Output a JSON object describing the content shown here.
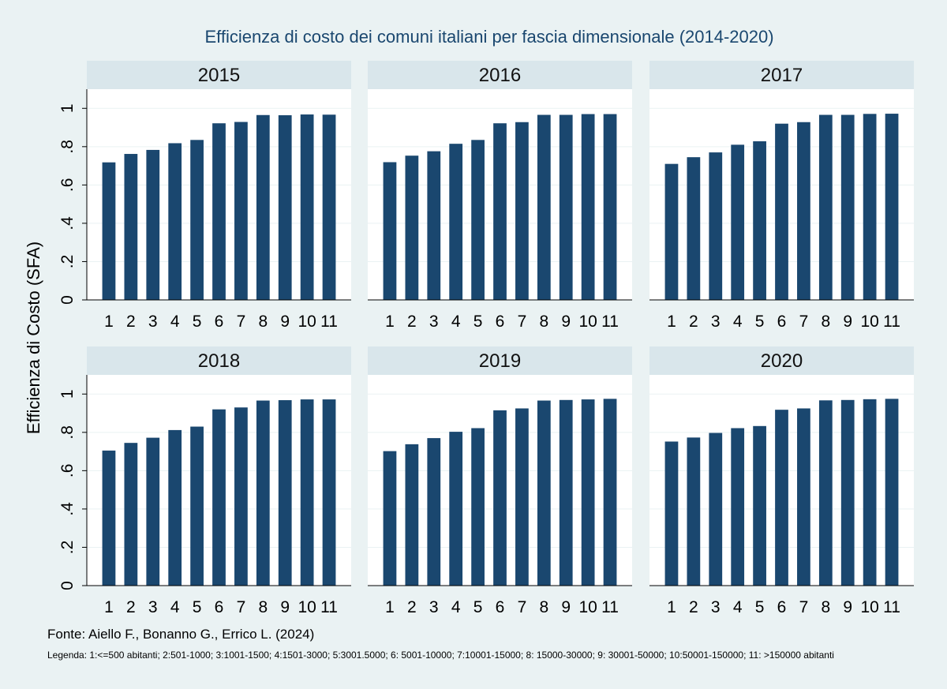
{
  "title": "Efficienza di costo dei comuni italiani per fascia dimensionale (2014-2020)",
  "source_note": "Fonte: Aiello F., Bonanno G., Errico L. (2024)",
  "legend_note": "Legenda: 1:<=500 abitanti; 2:501-1000; 3:1001-1500; 4:1501-3000; 5:3001.5000; 6: 5001-10000; 7:10001-15000; 8: 15000-30000; 9: 30001-50000; 10:50001-150000; 11: >150000 abitanti",
  "colors": {
    "bar": "#1a476f",
    "background": "#eaf2f3",
    "panel": "#ffffff",
    "strip": "#d9e6eb",
    "grid": "#eaf2f3",
    "title": "#1a476f"
  },
  "chart_data": {
    "type": "bar",
    "layout": "facet grid, 2 rows x 3 columns, shared y axis on left",
    "ylabel": "Efficienza di Costo (SFA)",
    "xlabel": "",
    "ylim": [
      0,
      1.1
    ],
    "yticks": [
      0,
      0.2,
      0.4,
      0.6,
      0.8,
      1
    ],
    "yticklabels": [
      "0",
      ".2",
      ".4",
      ".6",
      ".8",
      "1"
    ],
    "grid": true,
    "categories": [
      "1",
      "2",
      "3",
      "4",
      "5",
      "6",
      "7",
      "8",
      "9",
      "10",
      "11"
    ],
    "panels": [
      {
        "label": "2015",
        "values": [
          0.718,
          0.762,
          0.783,
          0.818,
          0.835,
          0.922,
          0.929,
          0.965,
          0.964,
          0.968,
          0.967
        ]
      },
      {
        "label": "2016",
        "values": [
          0.719,
          0.753,
          0.776,
          0.815,
          0.835,
          0.922,
          0.928,
          0.966,
          0.966,
          0.97,
          0.97
        ]
      },
      {
        "label": "2017",
        "values": [
          0.71,
          0.745,
          0.77,
          0.81,
          0.828,
          0.92,
          0.928,
          0.966,
          0.966,
          0.971,
          0.972
        ]
      },
      {
        "label": "2018",
        "values": [
          0.705,
          0.745,
          0.772,
          0.812,
          0.83,
          0.92,
          0.93,
          0.966,
          0.968,
          0.972,
          0.972
        ]
      },
      {
        "label": "2019",
        "values": [
          0.702,
          0.738,
          0.77,
          0.803,
          0.822,
          0.915,
          0.925,
          0.966,
          0.969,
          0.972,
          0.975
        ]
      },
      {
        "label": "2020",
        "values": [
          0.752,
          0.773,
          0.797,
          0.822,
          0.833,
          0.918,
          0.925,
          0.967,
          0.969,
          0.973,
          0.975
        ]
      }
    ]
  }
}
